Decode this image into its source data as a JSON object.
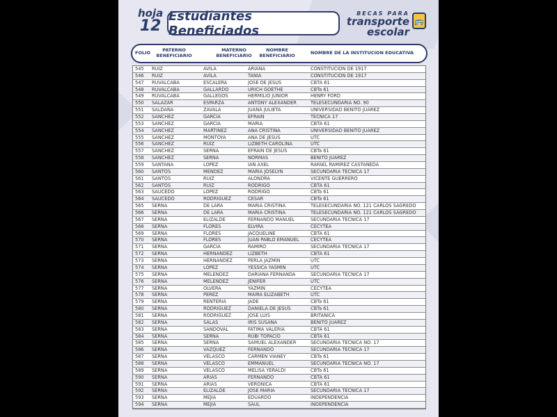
{
  "header": {
    "hoja_label": "hoja",
    "hoja_number": "12",
    "title": "Estudiantes Beneficiados",
    "logo": {
      "line1": "BECAS PARA",
      "line2": "transporte",
      "line3": "escolar",
      "icon": "bus-icon"
    }
  },
  "columns": [
    "FOLIO",
    "PATERNO BENEFICIARIO",
    "MATERNO BENEFICIARIO",
    "NOMBRE BENEFICIARIO",
    "NOMBRE DE LA INSTITUCION EDUCATIVA"
  ],
  "rows": [
    [
      "545",
      "RUIZ",
      "AVILA",
      "ARIANA",
      "CONSTITUCION DE 1917"
    ],
    [
      "546",
      "RUIZ",
      "AVILA",
      "TANIA",
      "CONSTITUCION DE 1917"
    ],
    [
      "547",
      "RUVALCABA",
      "ESCALERA",
      "JOSE DE JESUS",
      "CBTA 61"
    ],
    [
      "548",
      "RUVALCABA",
      "GALLARDO",
      "URICH GOETHE",
      "CBTa 61"
    ],
    [
      "549",
      "RUVALCABA",
      "GALLEGOS",
      "HERMILIO JUNIOR",
      "HENRY FORD"
    ],
    [
      "550",
      "SALAZAR",
      "ESPARZA",
      "ANTONY ALEXANDER",
      "TELESECUNDARIA NO. 90"
    ],
    [
      "551",
      "SALDAÑA",
      "ZAVALA",
      "JUANA JULIETA",
      "UNIVERSIDAD BENITO JUAREZ"
    ],
    [
      "552",
      "SANCHEZ",
      "GARCIA",
      "EFRAIN",
      "TECNICA 17"
    ],
    [
      "553",
      "SANCHEZ",
      "GARCIA",
      "MARIA",
      "CBTA 61"
    ],
    [
      "554",
      "SANCHEZ",
      "MARTINEZ",
      "ANA CRISTINA",
      "UNIVERSIDAD BENITO JUAREZ"
    ],
    [
      "555",
      "SANCHEZ",
      "MONTOYA",
      "ANA DE JESUS",
      "UTC"
    ],
    [
      "556",
      "SANCHEZ",
      "RUIZ",
      "LIZBETH CAROLINA",
      "UTC"
    ],
    [
      "557",
      "SANCHEZ",
      "SERNA",
      "EFRAIN DE JESUS",
      "CBTa 61"
    ],
    [
      "558",
      "SANCHEZ",
      "SERNA",
      "NORMAS",
      "BENITO JUAREZ"
    ],
    [
      "559",
      "SANTANA",
      "LOPEZ",
      "IAN AXEL",
      "RAFAEL RAMIREZ CASTAÑEDA"
    ],
    [
      "560",
      "SANTOS",
      "MENDEZ",
      "MARIA JOSELYN",
      "SECUNDARIA TECNICA 17"
    ],
    [
      "561",
      "SANTOS",
      "RUIZ",
      "ALONDRA",
      "VICENTE GUERRERO"
    ],
    [
      "562",
      "SANTOS",
      "RUIZ",
      "RODRIGO",
      "CBTA 61"
    ],
    [
      "563",
      "SAUCEDO",
      "LOPEZ",
      "RODRIGO",
      "CBTa 61"
    ],
    [
      "564",
      "SAUCEDO",
      "RODRIGUEZ",
      "CESAR",
      "CBTa 61"
    ],
    [
      "565",
      "SERNA",
      "DE LARA",
      "MARIA CRISTINA",
      "TELESECUNDARIA NO. 121 CARLOS SAGREDO"
    ],
    [
      "566",
      "SERNA",
      "DE LARA",
      "MARIA CRISTINA",
      "TELESECUNDARIA NO. 121 CARLOS SAGREDO"
    ],
    [
      "567",
      "SERNA",
      "ELIZALDE",
      "FERNANDO MANUEL",
      "SECUNDARIA TECNICA 17"
    ],
    [
      "568",
      "SERNA",
      "FLORES",
      "ELVIRA",
      "CECYTEA"
    ],
    [
      "569",
      "SERNA",
      "FLORES",
      "JACQUELINE",
      "CBTA 61"
    ],
    [
      "570",
      "SERNA",
      "FLORES",
      "JUAN PABLO EMANUEL",
      "CECYTEA"
    ],
    [
      "571",
      "SERNA",
      "GARCIA",
      "RAMIRO",
      "SECUNDARIA TECNICA 17"
    ],
    [
      "572",
      "SERNA",
      "HERNANDEZ",
      "LIZBETH",
      "CBTA 61"
    ],
    [
      "573",
      "SERNA",
      "HERNANDEZ",
      "PERLA JAZMIN",
      "UTC"
    ],
    [
      "574",
      "SERNA",
      "LOPEZ",
      "YESSICA YASMIN",
      "UTC"
    ],
    [
      "575",
      "SERNA",
      "MELENDEZ",
      "DARIANA FERNANDA",
      "SECUNDARIA TECNICA 17"
    ],
    [
      "576",
      "SERNA",
      "MELENDEZ",
      "JENIFER",
      "UTC"
    ],
    [
      "577",
      "SERNA",
      "OLVERA",
      "YAZMIN",
      "CECYTEA"
    ],
    [
      "578",
      "SERNA",
      "PEREZ",
      "MAIRA ELIZABETH",
      "UTC"
    ],
    [
      "579",
      "SERNA",
      "RENTERIA",
      "JADE",
      "CBTa 61"
    ],
    [
      "580",
      "SERNA",
      "RODRIGUEZ",
      "DANIELA DE JESUS",
      "CBTa 61"
    ],
    [
      "581",
      "SERNA",
      "RODRIGUEZ",
      "JOSE LUIS",
      "BRITANICA"
    ],
    [
      "582",
      "SERNA",
      "SALAS",
      "IRIS SUSANA",
      "BENITO JUAREZ"
    ],
    [
      "583",
      "SERNA",
      "SANDOVAL",
      "FATIMA VALERIA",
      "CBTA 61"
    ],
    [
      "584",
      "SERNA",
      "SERNA",
      "RUBI TOPACIO",
      "CBTA 61"
    ],
    [
      "585",
      "SERNA",
      "SERNA",
      "SAMUEL ALEXANDER",
      "SECUNDARIA TECNICA NO. 17"
    ],
    [
      "586",
      "SERNA",
      "VAZQUEZ",
      "FERNANDO",
      "SECUNDARIA TECNICA 17"
    ],
    [
      "587",
      "SERNA",
      "VELASCO",
      "CARMEN VIANEY",
      "CBTa 61"
    ],
    [
      "588",
      "SERNA",
      "VELASCO",
      "EMMANUEL",
      "SECUNDARIA TECNICA NO. 17"
    ],
    [
      "589",
      "SERNA",
      "VELASCO",
      "MELISA YERALDI",
      "CBTa 61"
    ],
    [
      "590",
      "SERNA",
      "ARIAS",
      "FERNANDO",
      "CBTA 61"
    ],
    [
      "591",
      "SERNA",
      "ARIAS",
      "VERONICA",
      "CBTA 61"
    ],
    [
      "592",
      "SERNA",
      "ELIZALDE",
      "JOSE MARIA",
      "SECUNDARIA TECNICA 17"
    ],
    [
      "593",
      "SERNA",
      "MEJIA",
      "EDUARDO",
      "INDEPENDENCIA"
    ],
    [
      "594",
      "SERNA",
      "MEJIA",
      "SAUL",
      "INDEPENDENCIA"
    ]
  ],
  "colors": {
    "navy": "#2b3a67",
    "background": "#e6e7f0",
    "accent": "#f5c542"
  }
}
